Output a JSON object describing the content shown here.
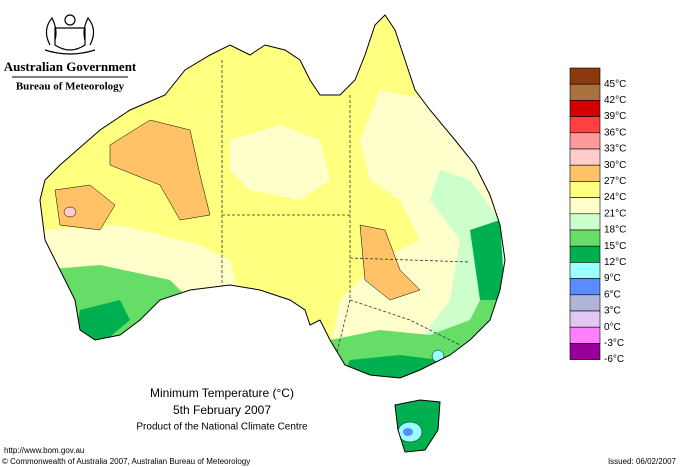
{
  "header": {
    "government": "Australian Government",
    "agency": "Bureau of Meteorology"
  },
  "legend": {
    "items": [
      {
        "label": "45°C",
        "color": "#8b3a0e"
      },
      {
        "label": "42°C",
        "color": "#a9713e"
      },
      {
        "label": "39°C",
        "color": "#d40000"
      },
      {
        "label": "36°C",
        "color": "#ff4040"
      },
      {
        "label": "33°C",
        "color": "#ff9a9a"
      },
      {
        "label": "30°C",
        "color": "#ffcccc"
      },
      {
        "label": "27°C",
        "color": "#ffc266"
      },
      {
        "label": "24°C",
        "color": "#ffff80"
      },
      {
        "label": "21°C",
        "color": "#ffffcc"
      },
      {
        "label": "18°C",
        "color": "#ccffcc"
      },
      {
        "label": "15°C",
        "color": "#66dd66"
      },
      {
        "label": "12°C",
        "color": "#00b050"
      },
      {
        "label": "9°C",
        "color": "#99ffff"
      },
      {
        "label": "6°C",
        "color": "#5b8cff"
      },
      {
        "label": "3°C",
        "color": "#b0b4d8"
      },
      {
        "label": "0°C",
        "color": "#e0c8f0"
      },
      {
        "label": "-3°C",
        "color": "#ff80ff"
      },
      {
        "label": "-6°C",
        "color": "#990099"
      }
    ]
  },
  "caption": {
    "title": "Minimum Temperature (°C)",
    "date": "5th February 2007",
    "product": "Product of the National Climate Centre"
  },
  "footer": {
    "url": "http://www.bom.gov.au",
    "copyright": "© Commonwealth of Australia 2007, Australian Bureau of Meteorology",
    "issued": "Issued: 06/02/2007"
  }
}
